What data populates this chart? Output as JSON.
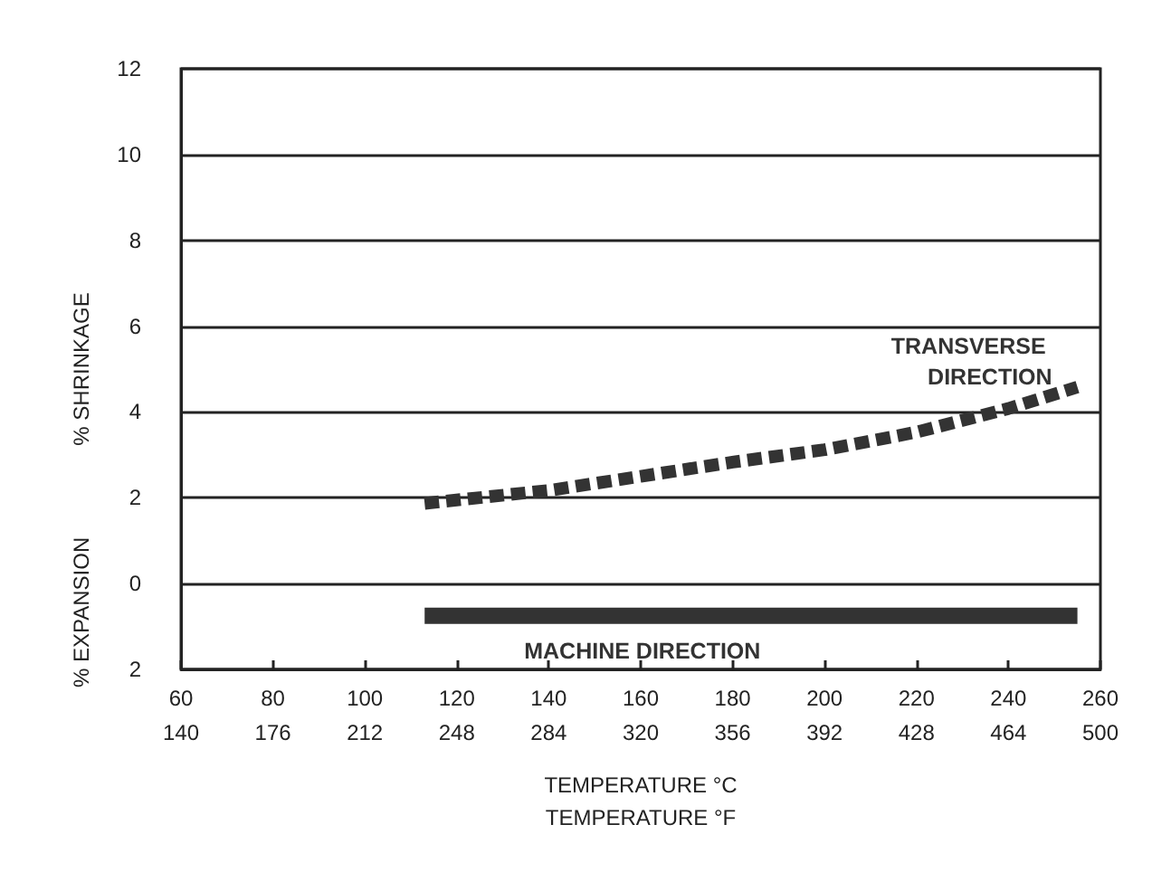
{
  "chart_data": {
    "type": "line",
    "xlabel": "TEMPERATURE °C",
    "x2label": "TEMPERATURE °F",
    "ylabel": "% SHRINKAGE",
    "annotations": [
      "% EXPANSION"
    ],
    "xlim": [
      60,
      260
    ],
    "xticks": [
      60,
      80,
      100,
      120,
      140,
      160,
      180,
      200,
      220,
      240,
      260
    ],
    "x2lim": [
      140,
      500
    ],
    "x2ticks": [
      140,
      176,
      212,
      248,
      284,
      320,
      356,
      392,
      428,
      464,
      500
    ],
    "ylim": [
      -2,
      12
    ],
    "yticks": [
      {
        "value": -2,
        "label": "2"
      },
      0,
      2,
      4,
      6,
      8,
      10,
      12
    ],
    "grid": "y",
    "legend": false,
    "series": [
      {
        "name": "TRANSVERSE DIRECTION",
        "color": "#333333",
        "line_style": "dashed",
        "x": [
          113,
          140,
          160,
          180,
          200,
          220,
          240,
          255
        ],
        "values": [
          1.87,
          2.17,
          2.5,
          2.83,
          3.12,
          3.53,
          4.08,
          4.58
        ]
      },
      {
        "name": "MACHINE DIRECTION",
        "color": "#333333",
        "line_style": "solid",
        "x": [
          113,
          255
        ],
        "values": [
          -0.75,
          -0.75
        ]
      }
    ]
  }
}
